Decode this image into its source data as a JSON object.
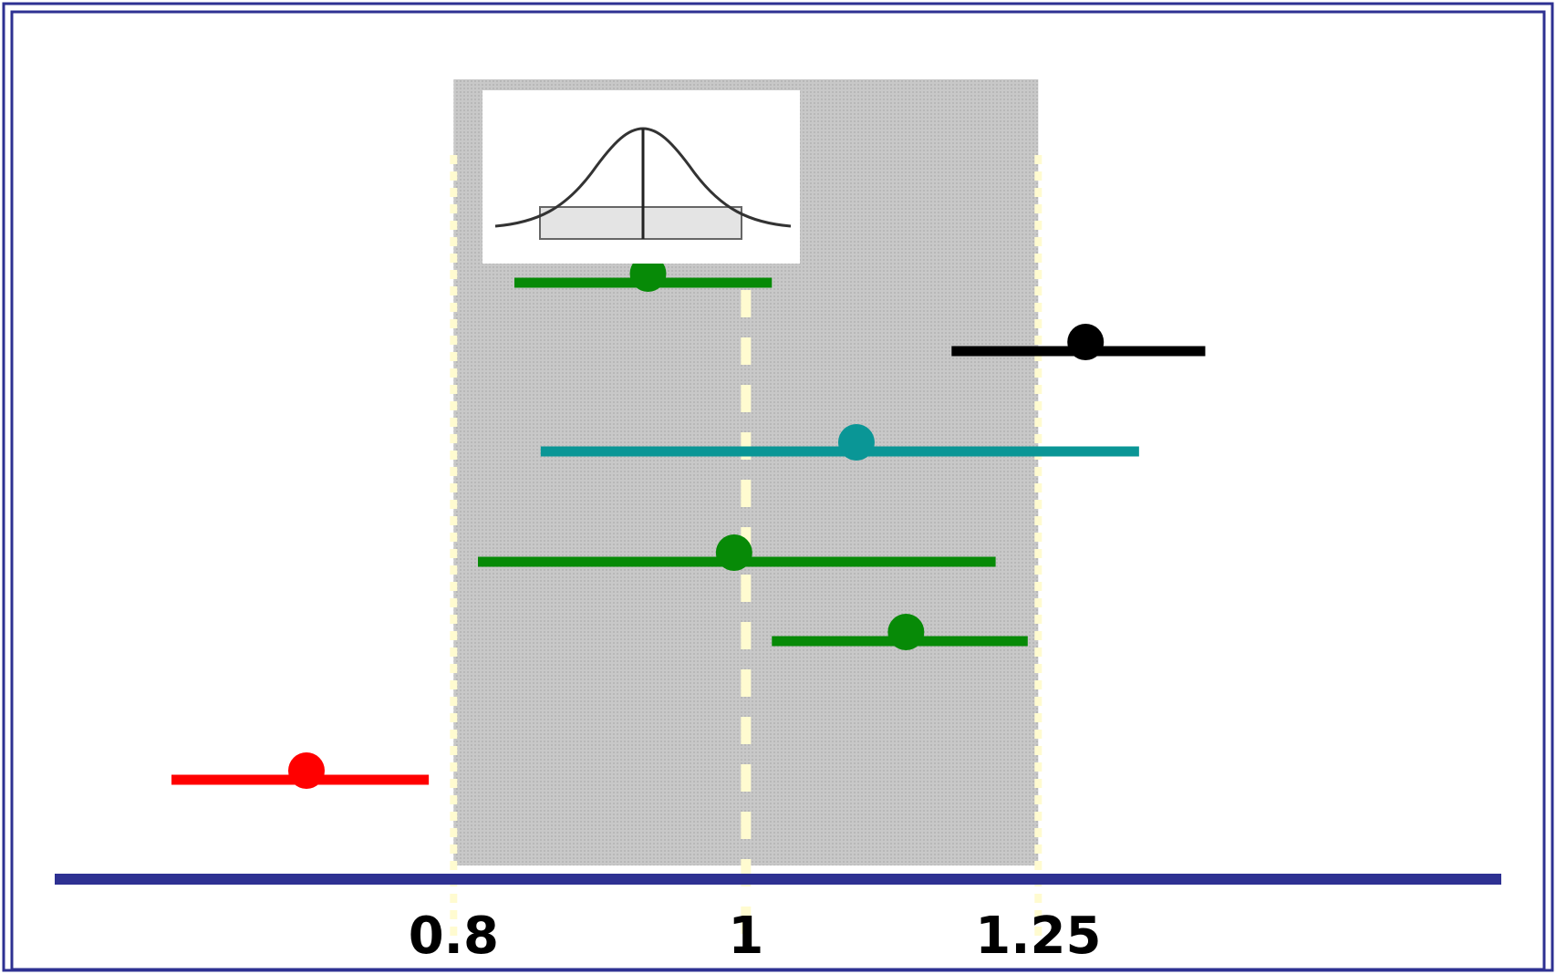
{
  "chart_data": {
    "type": "forest",
    "log_x": true,
    "xlim": [
      0.59,
      1.78
    ],
    "xticks": [
      0.8,
      1,
      1.25
    ],
    "values": [
      0.928,
      1.296,
      1.088,
      0.991,
      1.13,
      0.715
    ],
    "lower": [
      0.838,
      1.17,
      0.855,
      0.815,
      1.02,
      0.645
    ],
    "upper": [
      1.02,
      1.42,
      1.35,
      1.21,
      1.24,
      0.785
    ],
    "colors": [
      "#078a07",
      "#000000",
      "#0a9696",
      "#078a07",
      "#078a07",
      "#ff0000"
    ],
    "shade_color": "#c4c4c4",
    "axis_color": "#2e3192"
  }
}
